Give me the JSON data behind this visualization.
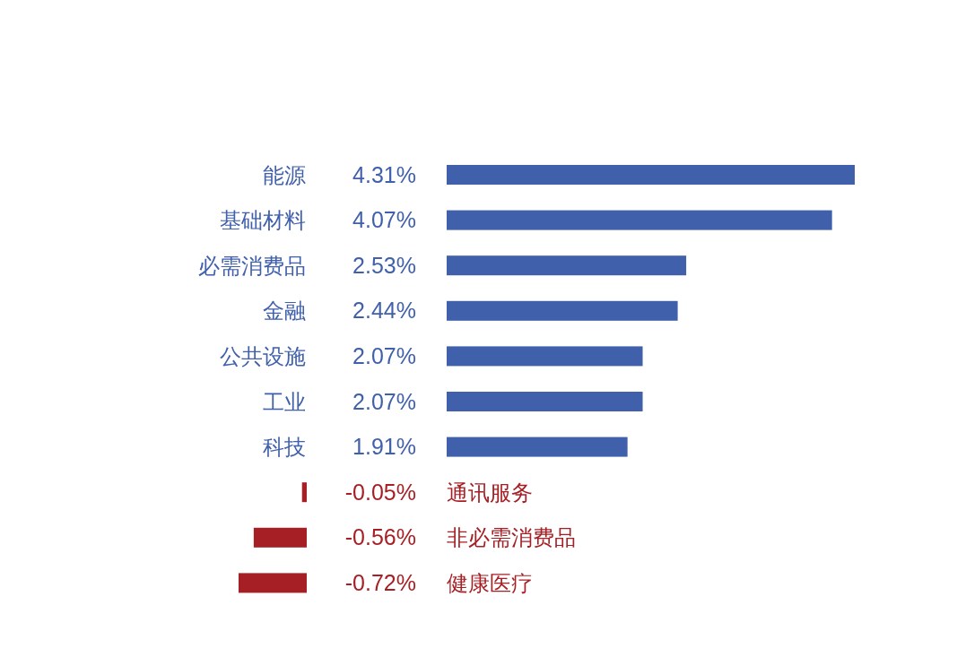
{
  "chart_data": [
    {
      "type": "bar",
      "orientation": "horizontal",
      "tick_labels": "y",
      "categories": [
        "能源",
        "基础材料",
        "必需消费品",
        "金融",
        "公共设施",
        "工业",
        "科技"
      ],
      "values": [
        4.31,
        4.07,
        2.53,
        2.44,
        2.07,
        2.07,
        1.91
      ],
      "colors": [
        "#4060ab",
        "#4060ab",
        "#4060ab",
        "#4060ab",
        "#4060ab",
        "#4060ab",
        "#4060ab"
      ],
      "value_labels": [
        "4.31%",
        "4.07%",
        "2.53%",
        "2.44%",
        "2.07%",
        "2.07%",
        "1.91%"
      ]
    },
    {
      "type": "bar",
      "orientation": "horizontal",
      "tick_labels": "y",
      "categories": [
        "通讯服务",
        "非必需消费品",
        "健康医疗"
      ],
      "values": [
        -0.05,
        -0.56,
        -0.72
      ],
      "colors": [
        "#a61f24",
        "#a61f24",
        "#a61f24"
      ],
      "value_labels": [
        "-0.05%",
        "-0.56%",
        "-0.72%"
      ]
    }
  ]
}
